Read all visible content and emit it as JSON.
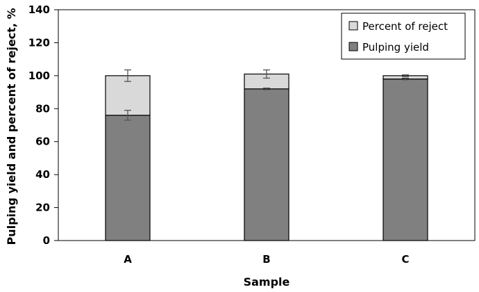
{
  "chart_data": {
    "type": "bar",
    "stacked": true,
    "xlabel": "Sample",
    "ylabel": "Pulping yield and percent of reject, %",
    "ylim": [
      0,
      140
    ],
    "yticks": [
      0,
      20,
      40,
      60,
      80,
      100,
      120,
      140
    ],
    "categories": [
      "A",
      "B",
      "C"
    ],
    "series": [
      {
        "name": "Pulping yield",
        "values": [
          76,
          92,
          98
        ],
        "errors": [
          3,
          0.5,
          0.5
        ],
        "color": "#808080"
      },
      {
        "name": "Percent of reject",
        "values": [
          24,
          9,
          2
        ],
        "errors": [
          3.5,
          2.5,
          0.5
        ],
        "color": "#d9d9d9"
      }
    ],
    "legend_position": "top-right",
    "grid": false
  }
}
